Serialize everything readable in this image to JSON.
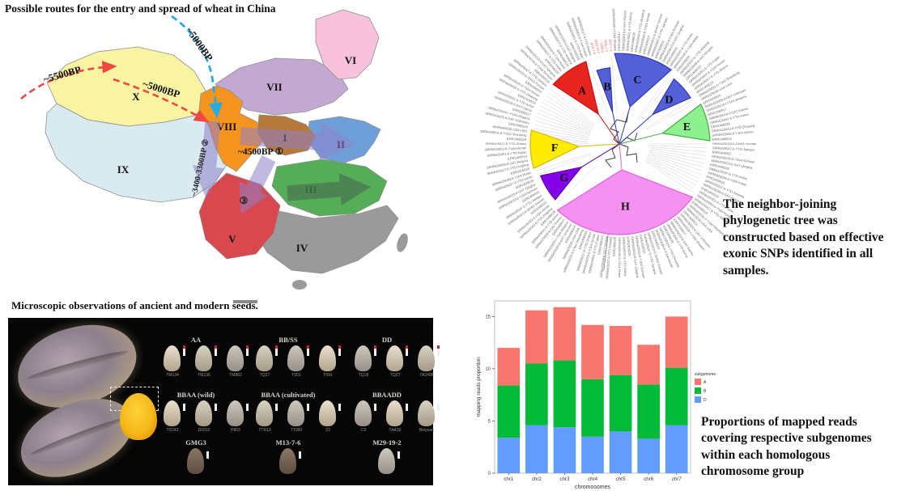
{
  "page": {
    "map_title": "Possible routes for the entry and spread of wheat in China",
    "seeds_title": "Microscopic observations of ancient and modern seeds.",
    "tree_caption": "The neighbor-joining phylogenetic tree was constructed based on effective exonic SNPs identified in all samples.",
    "chart_caption": "Proportions of mapped reads covering respective subgenomes within each homologous chromosome group"
  },
  "map": {
    "regions": [
      {
        "id": "X",
        "label": "X",
        "color": "#f8f4a2"
      },
      {
        "id": "IX",
        "label": "IX",
        "color": "#d9eaf1"
      },
      {
        "id": "VII",
        "label": "VII",
        "color": "#c3a9d2"
      },
      {
        "id": "VI",
        "label": "VI",
        "color": "#f9c2dc"
      },
      {
        "id": "VIII",
        "label": "VIII",
        "color": "#f5941f"
      },
      {
        "id": "II",
        "label": "II",
        "color": "#6f9fd8"
      },
      {
        "id": "I",
        "label": "I",
        "color": "#b5793b"
      },
      {
        "id": "III",
        "label": "III",
        "color": "#55ad57"
      },
      {
        "id": "IV",
        "label": "IV",
        "color": "#9a9a9a"
      },
      {
        "id": "V",
        "label": "V",
        "color": "#d9484e"
      }
    ],
    "routes": [
      {
        "id": "red-west",
        "label": "~5500BP",
        "color": "#f04743",
        "style": "dashed"
      },
      {
        "id": "red-east",
        "label": "~5000BP",
        "color": "#f04743",
        "style": "dashed"
      },
      {
        "id": "blue-north",
        "label": "~5000BP",
        "color": "#29abe2",
        "style": "dashed"
      }
    ],
    "annotations": [
      {
        "id": "a1",
        "text": "~4500BP ①"
      },
      {
        "id": "a2",
        "text": "~3400-3300BP ②"
      },
      {
        "id": "a3",
        "text": "③"
      }
    ]
  },
  "tree": {
    "clades": [
      {
        "name": "A",
        "color": "#e8241f",
        "stroke": "#c01414"
      },
      {
        "name": "B",
        "color": "#5560d8",
        "stroke": "#2e3ab0"
      },
      {
        "name": "C",
        "color": "#5560d8",
        "stroke": "#2e3ab0"
      },
      {
        "name": "D",
        "color": "#5560d8",
        "stroke": "#2e3ab0"
      },
      {
        "name": "E",
        "color": "#8ef08e",
        "stroke": "#3fae3f"
      },
      {
        "name": "F",
        "color": "#ffec00",
        "stroke": "#d8b800"
      },
      {
        "name": "G",
        "color": "#8400e8",
        "stroke": "#5c00a8"
      },
      {
        "name": "H",
        "color": "#f591f1",
        "stroke": "#e060dc"
      }
    ],
    "tip_labels": [
      "SRR6425017-6-YTD-Shanxi",
      "ERR2406519",
      "SRR6425031-6-Y1b4-Shandong",
      "SRR6425035-USA-USA",
      "ERR2406524",
      "SRR6425025-6-GA7-Unknown",
      "SRR6425029-I-Y1b4-Shaanxi",
      "ERR2406517",
      "SRR6425019-6-GA7-Gansu",
      "SRR6425041-6-YTD-Anhui",
      "ERR2406528",
      "SRR6425043-6-YTD-Zhejiang",
      "SRR6425045-6-Y1b4-Henan",
      "ERR2406522",
      "SRR6425015-6-SHA3-Yunnan",
      "SRR6425047-6-YTD-Jiangsu",
      "ERR2406531",
      "SRR6425033-6-Y1b4-Sichuan",
      "SRR6425023-6-GA7-Qinghai",
      "ERR2406526",
      "SRR6425037-6-YTD-Hebei",
      "SRR6425049-6-Y1b4-Hubei",
      "ERR2406520",
      "SRR6425027-6-YTD-Xinjiang",
      "SRR6425039-6-GA7-Ningxia",
      "ERR2406533",
      "SRR6425051-6-YTD-Fujian",
      "SRR6425053-6-Y1b4-Hunan"
    ],
    "red_tip_labels": [
      "M13-7-6",
      "M29-19-2",
      "GMG3",
      "M25-1-2",
      "M13-7-6"
    ]
  },
  "seeds": {
    "groups": [
      {
        "label": "AA",
        "sublabels": [
          "TM134",
          "TM136",
          "TM862"
        ]
      },
      {
        "label": "BB/SS",
        "sublabels": [
          "TQ27",
          "T001",
          "T091"
        ]
      },
      {
        "label": "DD",
        "sublabels": [
          "TQ18",
          "TQ27",
          "TA2495"
        ]
      },
      {
        "label": "BBAA (wild)",
        "sublabels": [
          "TD243",
          "D0312",
          "P853"
        ]
      },
      {
        "label": "BBAA (cultivated)",
        "sublabels": [
          "TTR13",
          "TT060",
          "Z3"
        ]
      },
      {
        "label": "BBAADD",
        "sublabels": [
          "CS",
          "TAA10",
          "Beiyuan"
        ]
      },
      {
        "label": "GMG3",
        "sublabels": [
          ""
        ]
      },
      {
        "label": "M13-7-6",
        "sublabels": [
          ""
        ]
      },
      {
        "label": "M29-19-2",
        "sublabels": [
          ""
        ]
      }
    ]
  },
  "chart_data": {
    "type": "bar",
    "stacked": true,
    "categories": [
      "chr1",
      "chr2",
      "chr3",
      "chr4",
      "chr5",
      "chr6",
      "chr7"
    ],
    "series": [
      {
        "name": "A",
        "color": "#F8766D",
        "values": [
          3.6,
          5.1,
          5.1,
          5.2,
          4.7,
          3.8,
          4.9
        ]
      },
      {
        "name": "B",
        "color": "#00BA38",
        "values": [
          5.0,
          5.9,
          6.4,
          5.5,
          5.4,
          5.2,
          5.5
        ]
      },
      {
        "name": "D",
        "color": "#619CFF",
        "values": [
          3.4,
          4.6,
          4.4,
          3.5,
          4.0,
          3.3,
          4.6
        ]
      }
    ],
    "title": "",
    "xlabel": "chromosomes",
    "ylabel": "mapping reads proportion",
    "ylim": [
      0,
      16
    ],
    "yticks": [
      0,
      5,
      10,
      15
    ],
    "grid": false,
    "legend_title": "subgenome",
    "legend_position": "right"
  }
}
